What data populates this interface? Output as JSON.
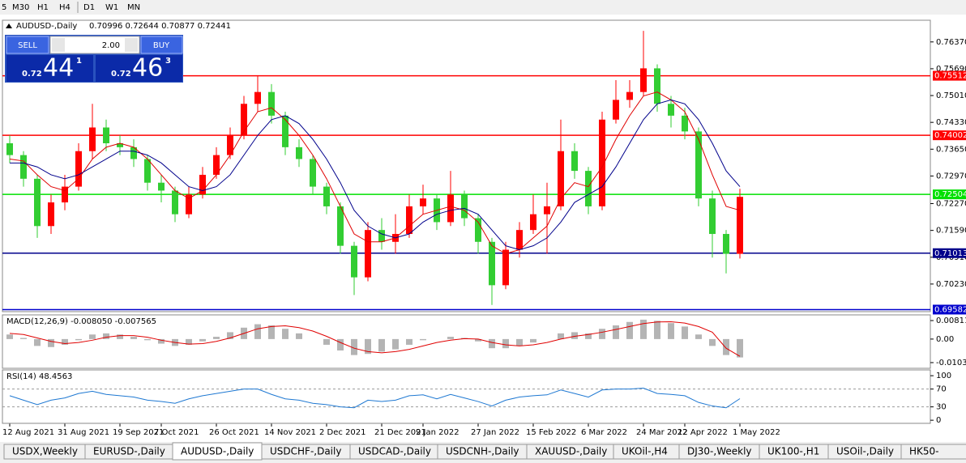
{
  "toolbar": {
    "timeframes": [
      "5",
      "M30",
      "H1",
      "H4",
      "D1",
      "W1",
      "MN"
    ]
  },
  "trade_panel": {
    "sell": "SELL",
    "buy": "BUY",
    "lot": "2.00",
    "sell_price": {
      "prefix": "0.72",
      "big": "44",
      "sup": "1"
    },
    "buy_price": {
      "prefix": "0.72",
      "big": "46",
      "sup": "3"
    }
  },
  "tabs": [
    "USDX,Weekly",
    "EURUSD-,Daily",
    "AUDUSD-,Daily",
    "USDCHF-,Daily",
    "USDCAD-,Daily",
    "USDCNH-,Daily",
    "XAUUSD-,Daily",
    "UKOil-,H4",
    "DJ30-,Weekly",
    "UK100-,H1",
    "USOil-,Daily",
    "HK50-"
  ],
  "active_tab": 2,
  "chart_data": [
    {
      "type": "candlestick",
      "title": "AUDUSD-,Daily",
      "ohlc_text": "0.70996 0.72644 0.70877 0.72441",
      "up_color": "#ff0000",
      "down_color": "#32cd32",
      "categories": [
        "12 Aug 2021",
        null,
        null,
        null,
        "31 Aug 2021",
        null,
        null,
        null,
        "19 Sep 2021",
        null,
        null,
        "7 Oct 2021",
        null,
        null,
        null,
        "26 Oct 2021",
        null,
        null,
        null,
        "14 Nov 2021",
        null,
        null,
        null,
        "2 Dec 2021",
        null,
        null,
        null,
        "21 Dec 2021",
        null,
        null,
        "9 Jan 2022",
        null,
        null,
        null,
        "27 Jan 2022",
        null,
        null,
        null,
        "15 Feb 2022",
        null,
        null,
        null,
        "6 Mar 2022",
        null,
        null,
        null,
        "24 Mar 2022",
        null,
        null,
        "12 Apr 2022",
        null,
        null,
        null,
        "1 May 2022"
      ],
      "open": [
        0.738,
        0.735,
        0.729,
        0.717,
        0.723,
        0.727,
        0.736,
        0.742,
        0.738,
        0.737,
        0.734,
        0.728,
        0.726,
        0.72,
        0.725,
        0.73,
        0.735,
        0.74,
        0.748,
        0.751,
        0.745,
        0.737,
        0.734,
        0.727,
        0.722,
        0.712,
        0.704,
        0.716,
        0.713,
        0.715,
        0.722,
        0.724,
        0.718,
        0.725,
        0.719,
        0.713,
        0.702,
        0.711,
        0.716,
        0.72,
        0.722,
        0.736,
        0.731,
        0.722,
        0.744,
        0.749,
        0.751,
        0.757,
        0.748,
        0.745,
        0.741,
        0.724,
        0.715,
        0.70996
      ],
      "high": [
        0.74,
        0.736,
        0.73,
        0.725,
        0.73,
        0.738,
        0.748,
        0.744,
        0.74,
        0.739,
        0.735,
        0.73,
        0.727,
        0.727,
        0.732,
        0.737,
        0.742,
        0.75,
        0.755,
        0.753,
        0.746,
        0.739,
        0.735,
        0.728,
        0.723,
        0.713,
        0.718,
        0.719,
        0.72,
        0.725,
        0.7275,
        0.725,
        0.731,
        0.726,
        0.72,
        0.714,
        0.713,
        0.718,
        0.725,
        0.728,
        0.744,
        0.738,
        0.732,
        0.746,
        0.754,
        0.754,
        0.7665,
        0.758,
        0.75,
        0.747,
        0.742,
        0.726,
        0.716,
        0.72644
      ],
      "low": [
        0.733,
        0.727,
        0.714,
        0.715,
        0.721,
        0.726,
        0.734,
        0.736,
        0.735,
        0.732,
        0.726,
        0.723,
        0.718,
        0.719,
        0.724,
        0.729,
        0.734,
        0.739,
        0.746,
        0.743,
        0.735,
        0.732,
        0.725,
        0.72,
        0.71,
        0.6995,
        0.703,
        0.711,
        0.71,
        0.714,
        0.72,
        0.716,
        0.717,
        0.717,
        0.71,
        0.697,
        0.701,
        0.709,
        0.715,
        0.71,
        0.721,
        0.729,
        0.72,
        0.721,
        0.743,
        0.747,
        0.75,
        0.746,
        0.742,
        0.739,
        0.722,
        0.709,
        0.705,
        0.70877
      ],
      "close": [
        0.735,
        0.729,
        0.717,
        0.723,
        0.727,
        0.736,
        0.742,
        0.738,
        0.737,
        0.734,
        0.728,
        0.726,
        0.72,
        0.725,
        0.73,
        0.735,
        0.74,
        0.748,
        0.751,
        0.745,
        0.737,
        0.734,
        0.727,
        0.722,
        0.712,
        0.704,
        0.716,
        0.713,
        0.715,
        0.722,
        0.724,
        0.718,
        0.725,
        0.719,
        0.713,
        0.702,
        0.711,
        0.716,
        0.72,
        0.722,
        0.736,
        0.731,
        0.722,
        0.744,
        0.749,
        0.751,
        0.757,
        0.748,
        0.745,
        0.741,
        0.724,
        0.715,
        0.70996,
        0.72441
      ],
      "moving_averages": [
        {
          "color": "#e00000",
          "values": [
            0.734,
            0.7335,
            0.73,
            0.727,
            0.726,
            0.729,
            0.734,
            0.737,
            0.738,
            0.737,
            0.734,
            0.73,
            0.726,
            0.724,
            0.726,
            0.73,
            0.735,
            0.741,
            0.746,
            0.747,
            0.744,
            0.74,
            0.735,
            0.729,
            0.722,
            0.715,
            0.713,
            0.713,
            0.714,
            0.717,
            0.72,
            0.721,
            0.722,
            0.721,
            0.718,
            0.712,
            0.71,
            0.711,
            0.714,
            0.717,
            0.724,
            0.728,
            0.727,
            0.732,
            0.739,
            0.745,
            0.75,
            0.751,
            0.749,
            0.746,
            0.739,
            0.73,
            0.722,
            0.721
          ]
        },
        {
          "color": "#00008b",
          "values": [
            0.733,
            0.733,
            0.732,
            0.73,
            0.729,
            0.73,
            0.732,
            0.734,
            0.736,
            0.736,
            0.735,
            0.733,
            0.73,
            0.727,
            0.726,
            0.727,
            0.73,
            0.735,
            0.74,
            0.744,
            0.745,
            0.743,
            0.739,
            0.734,
            0.728,
            0.721,
            0.717,
            0.715,
            0.714,
            0.715,
            0.718,
            0.72,
            0.721,
            0.7215,
            0.72,
            0.716,
            0.712,
            0.711,
            0.712,
            0.714,
            0.718,
            0.723,
            0.725,
            0.727,
            0.732,
            0.738,
            0.744,
            0.748,
            0.749,
            0.748,
            0.744,
            0.738,
            0.731,
            0.727
          ]
        }
      ],
      "levels": [
        {
          "value": 0.75512,
          "color": "#ff0000"
        },
        {
          "value": 0.74002,
          "color": "#ff0000"
        },
        {
          "value": 0.72504,
          "color": "#00e000"
        },
        {
          "value": 0.71013,
          "color": "#00008b"
        },
        {
          "value": 0.69582,
          "color": "#0000cd"
        }
      ],
      "ylim": [
        0.6953,
        0.7692
      ],
      "yticks": [
        {
          "value": 0.7637,
          "label": "0.76370"
        },
        {
          "value": 0.7569,
          "label": "0.75690"
        },
        {
          "value": 0.7501,
          "label": "0.75010"
        },
        {
          "value": 0.7433,
          "label": "0.74330"
        },
        {
          "value": 0.7365,
          "label": "0.73650"
        },
        {
          "value": 0.7297,
          "label": "0.72970"
        },
        {
          "value": 0.7227,
          "label": "0.72270"
        },
        {
          "value": 0.7159,
          "label": "0.71590"
        },
        {
          "value": 0.7091,
          "label": "0.70910"
        },
        {
          "value": 0.7023,
          "label": "0.70230"
        }
      ]
    },
    {
      "type": "macd",
      "title": "MACD(12,26,9) -0.008050 -0.007565",
      "hist_color": "#b4b4b4",
      "signal_color": "#e00000",
      "hist": [
        0.002,
        0.0005,
        -0.003,
        -0.0035,
        -0.0025,
        -0.0005,
        0.002,
        0.0025,
        0.002,
        0.001,
        -0.0005,
        -0.002,
        -0.003,
        -0.0025,
        -0.001,
        0.001,
        0.003,
        0.005,
        0.0065,
        0.006,
        0.0045,
        0.0025,
        0.0,
        -0.0025,
        -0.005,
        -0.007,
        -0.0065,
        -0.0055,
        -0.0045,
        -0.0025,
        -0.0005,
        0.0,
        0.001,
        0.0005,
        -0.001,
        -0.004,
        -0.004,
        -0.003,
        -0.0015,
        0.0,
        0.0025,
        0.003,
        0.0025,
        0.0045,
        0.006,
        0.0075,
        0.0085,
        0.008,
        0.007,
        0.0055,
        0.002,
        -0.003,
        -0.007,
        -0.00805
      ],
      "signal": [
        0.0025,
        0.002,
        0.0005,
        -0.001,
        -0.002,
        -0.0015,
        -0.0005,
        0.0008,
        0.0015,
        0.0015,
        0.0008,
        -0.0005,
        -0.0015,
        -0.0022,
        -0.002,
        -0.001,
        0.0005,
        0.0025,
        0.0045,
        0.0055,
        0.0058,
        0.005,
        0.0035,
        0.0012,
        -0.0015,
        -0.004,
        -0.0055,
        -0.006,
        -0.0055,
        -0.0045,
        -0.003,
        -0.0015,
        -0.0005,
        0.0002,
        0.0,
        -0.0015,
        -0.0025,
        -0.003,
        -0.0025,
        -0.0015,
        0.0,
        0.0012,
        0.002,
        0.003,
        0.0042,
        0.0055,
        0.0068,
        0.0075,
        0.0076,
        0.007,
        0.0055,
        0.003,
        -0.004,
        -0.007565
      ],
      "ylim": [
        -0.0128,
        0.0106
      ],
      "yticks": [
        0.00811,
        {
          "value": 0,
          "label": "0.00"
        },
        -0.01031
      ]
    },
    {
      "type": "rsi",
      "title": "RSI(14) 48.4563",
      "color": "#1e78d2",
      "values": [
        55,
        45,
        35,
        45,
        50,
        60,
        65,
        58,
        55,
        52,
        45,
        42,
        38,
        48,
        55,
        60,
        65,
        70,
        70,
        58,
        48,
        45,
        38,
        35,
        30,
        28,
        45,
        42,
        45,
        55,
        57,
        48,
        58,
        50,
        42,
        32,
        45,
        52,
        55,
        57,
        68,
        60,
        52,
        68,
        70,
        70,
        72,
        60,
        58,
        55,
        40,
        32,
        28,
        48.4563
      ],
      "levels": [
        70,
        30
      ],
      "ylim": [
        -7,
        113
      ],
      "yticks": [
        100,
        70,
        30,
        0
      ]
    }
  ]
}
